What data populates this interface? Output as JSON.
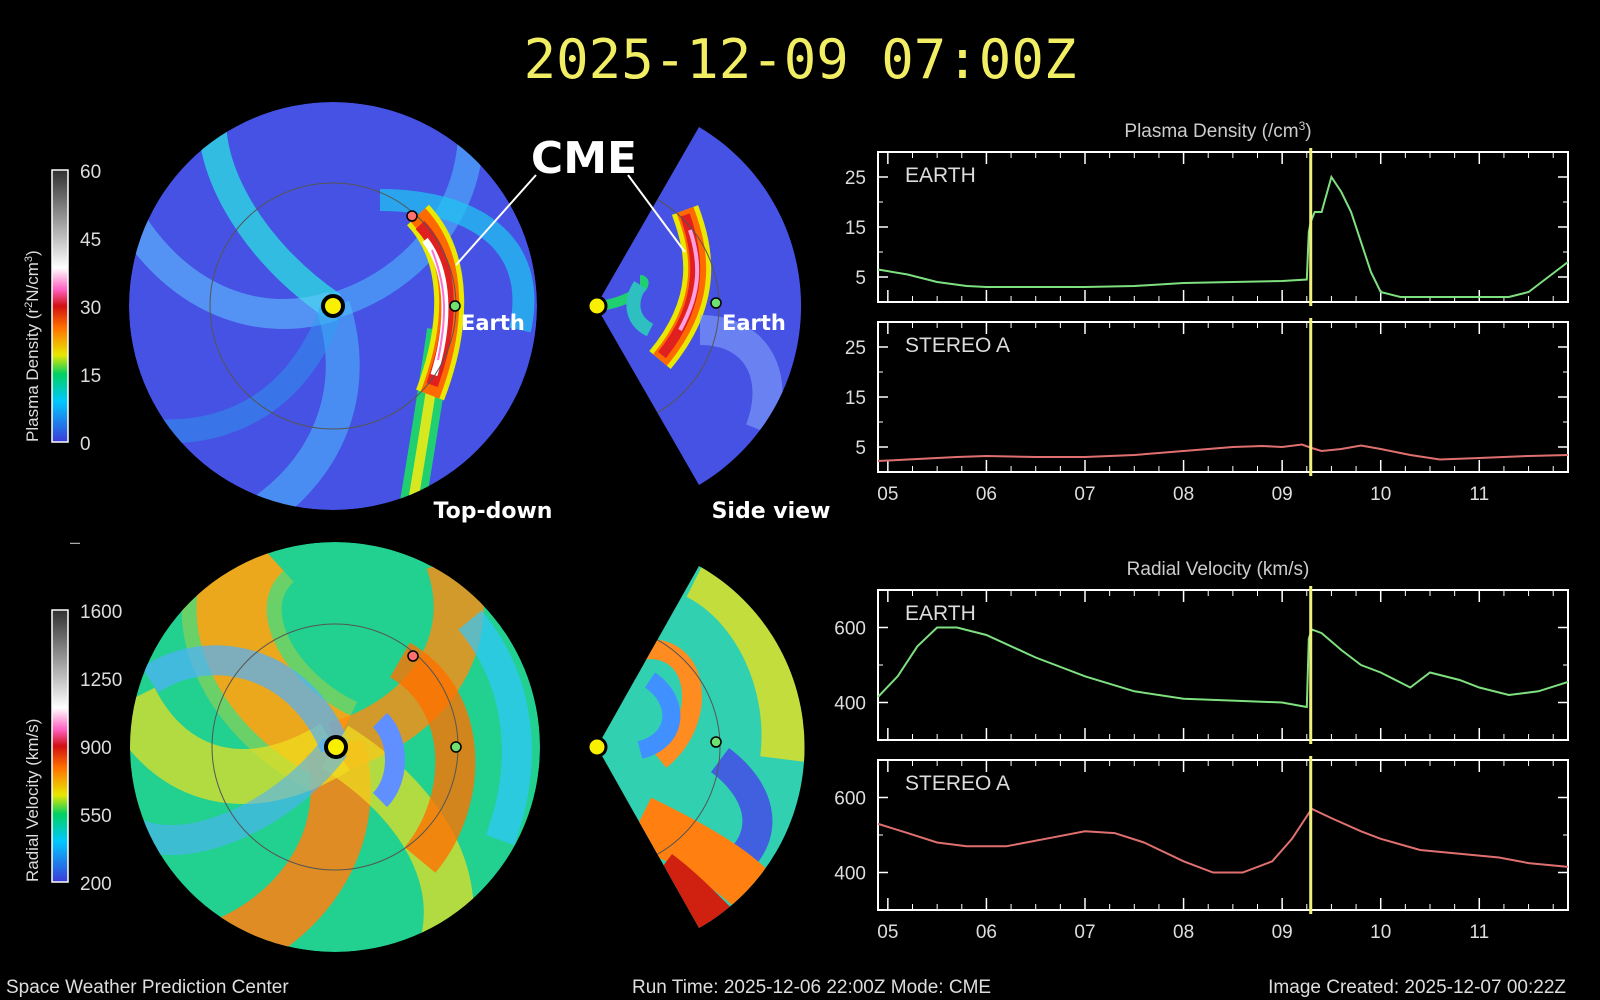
{
  "header": {
    "timestamp": "2025-12-09  07:00Z"
  },
  "annotations": {
    "cme": "CME",
    "earth_label": "Earth",
    "top_down": "Top-down",
    "side_view": "Side view",
    "minus": "–"
  },
  "colorbars": [
    {
      "label_prefix": "Plasma Density (r",
      "label_sup1": "2",
      "label_mid": "N/cm",
      "label_sup2": "3",
      "label_suffix": ")",
      "ticks": [
        "60",
        "45",
        "30",
        "15",
        "0"
      ]
    },
    {
      "label": "Radial Velocity (km/s)",
      "ticks": [
        "1600",
        "1250",
        "900",
        "550",
        "200"
      ]
    }
  ],
  "footer": {
    "left": "Space Weather Prediction Center",
    "center": "Run Time: 2025-12-06 22:00Z  Mode: CME",
    "right": "Image Created: 2025-12-07 00:22Z"
  },
  "colors": {
    "earth_line": "#7fe07f",
    "stereo_line": "#e07070",
    "cursor": "#f0f07a",
    "title_yellow": "#f2ee63"
  },
  "chart_data": [
    {
      "type": "line",
      "title": "Plasma Density (/cm",
      "title_sup": "3",
      "title_end": ")",
      "label": "EARTH",
      "ylim": [
        0,
        30
      ],
      "yticks": [
        "25",
        "15",
        "5"
      ],
      "ytick_values": [
        25,
        15,
        5
      ],
      "xlim": [
        4.9,
        11.9
      ],
      "xticks": [
        "05",
        "06",
        "07",
        "08",
        "09",
        "10",
        "11"
      ],
      "xtick_values": [
        5,
        6,
        7,
        8,
        9,
        10,
        11
      ],
      "show_xticks": false,
      "cursor_x": 9.29,
      "series_color": "earth",
      "x": [
        4.9,
        5.2,
        5.5,
        5.8,
        6.0,
        6.5,
        7.0,
        7.5,
        8.0,
        8.5,
        9.0,
        9.25,
        9.27,
        9.29,
        9.33,
        9.4,
        9.5,
        9.6,
        9.7,
        9.8,
        9.9,
        10.0,
        10.2,
        10.5,
        11.0,
        11.3,
        11.5,
        11.7,
        11.9
      ],
      "y": [
        6.5,
        5.5,
        4.0,
        3.2,
        3.0,
        3.0,
        3.0,
        3.2,
        3.8,
        4.0,
        4.2,
        4.5,
        14,
        16,
        18,
        18,
        25,
        22,
        18,
        12,
        6,
        2,
        1,
        1,
        1,
        1,
        2,
        5,
        8
      ]
    },
    {
      "type": "line",
      "label": "STEREO A",
      "ylim": [
        0,
        30
      ],
      "yticks": [
        "25",
        "15",
        "5"
      ],
      "ytick_values": [
        25,
        15,
        5
      ],
      "xlim": [
        4.9,
        11.9
      ],
      "xticks": [
        "05",
        "06",
        "07",
        "08",
        "09",
        "10",
        "11"
      ],
      "xtick_values": [
        5,
        6,
        7,
        8,
        9,
        10,
        11
      ],
      "show_xticks": true,
      "cursor_x": 9.29,
      "series_color": "stereo",
      "x": [
        4.9,
        5.3,
        5.7,
        6.0,
        6.5,
        7.0,
        7.5,
        8.0,
        8.5,
        8.8,
        9.0,
        9.2,
        9.3,
        9.4,
        9.6,
        9.8,
        10.0,
        10.3,
        10.6,
        11.0,
        11.5,
        11.9
      ],
      "y": [
        2.2,
        2.6,
        3.0,
        3.2,
        3.0,
        3.0,
        3.4,
        4.2,
        5.0,
        5.2,
        5.0,
        5.5,
        4.8,
        4.2,
        4.6,
        5.3,
        4.6,
        3.4,
        2.5,
        2.8,
        3.2,
        3.4
      ]
    },
    {
      "type": "line",
      "title": "Radial Velocity (km/s)",
      "label": "EARTH",
      "ylim": [
        300,
        700
      ],
      "yticks": [
        "600",
        "400"
      ],
      "ytick_values": [
        600,
        400
      ],
      "xlim": [
        4.9,
        11.9
      ],
      "xticks": [
        "05",
        "06",
        "07",
        "08",
        "09",
        "10",
        "11"
      ],
      "xtick_values": [
        5,
        6,
        7,
        8,
        9,
        10,
        11
      ],
      "show_xticks": false,
      "cursor_x": 9.29,
      "series_color": "earth",
      "x": [
        4.9,
        5.1,
        5.3,
        5.5,
        5.7,
        6.0,
        6.5,
        7.0,
        7.5,
        8.0,
        8.5,
        9.0,
        9.25,
        9.27,
        9.3,
        9.4,
        9.6,
        9.8,
        10.0,
        10.3,
        10.4,
        10.5,
        10.8,
        11.0,
        11.3,
        11.6,
        11.9
      ],
      "y": [
        415,
        470,
        550,
        600,
        600,
        580,
        520,
        470,
        430,
        410,
        405,
        400,
        388,
        570,
        595,
        585,
        540,
        500,
        480,
        440,
        460,
        480,
        460,
        440,
        420,
        430,
        455
      ]
    },
    {
      "type": "line",
      "label": "STEREO A",
      "ylim": [
        300,
        700
      ],
      "yticks": [
        "600",
        "400"
      ],
      "ytick_values": [
        600,
        400
      ],
      "xlim": [
        4.9,
        11.9
      ],
      "xticks": [
        "05",
        "06",
        "07",
        "08",
        "09",
        "10",
        "11"
      ],
      "xtick_values": [
        5,
        6,
        7,
        8,
        9,
        10,
        11
      ],
      "show_xticks": true,
      "cursor_x": 9.29,
      "series_color": "stereo",
      "x": [
        4.9,
        5.2,
        5.5,
        5.8,
        6.2,
        6.6,
        7.0,
        7.3,
        7.6,
        8.0,
        8.3,
        8.6,
        8.9,
        9.1,
        9.3,
        9.5,
        9.8,
        10.0,
        10.4,
        10.8,
        11.2,
        11.5,
        11.9
      ],
      "y": [
        530,
        505,
        480,
        470,
        470,
        490,
        510,
        505,
        480,
        430,
        400,
        400,
        430,
        490,
        570,
        545,
        510,
        490,
        460,
        450,
        440,
        425,
        415
      ]
    }
  ]
}
